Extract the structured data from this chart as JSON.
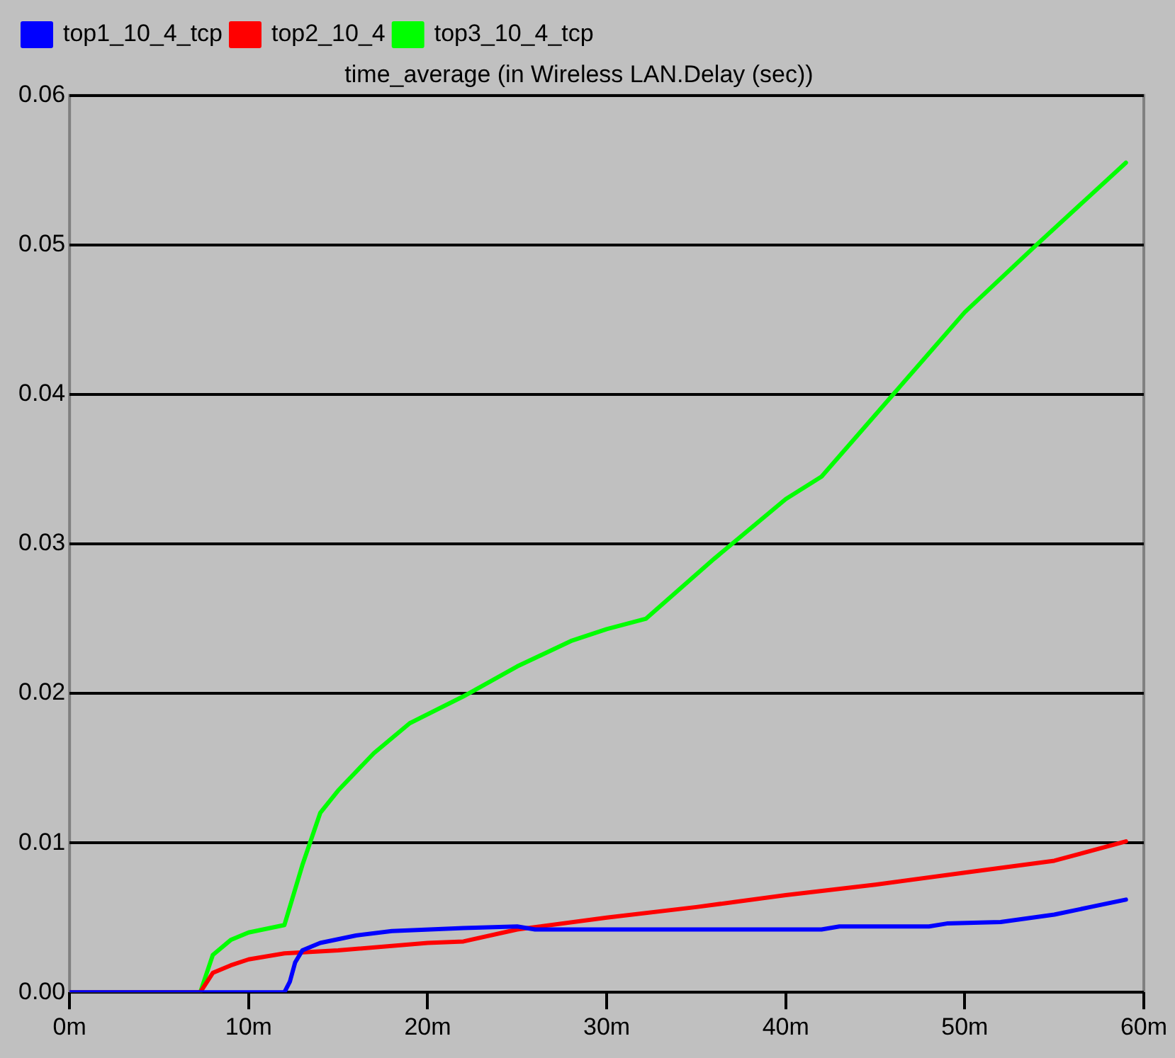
{
  "chart_data": {
    "type": "line",
    "title": "time_average (in Wireless LAN.Delay (sec))",
    "xlim": [
      0,
      60
    ],
    "xticks": [
      {
        "value": 0,
        "label": "0m"
      },
      {
        "value": 10,
        "label": "10m"
      },
      {
        "value": 20,
        "label": "20m"
      },
      {
        "value": 30,
        "label": "30m"
      },
      {
        "value": 40,
        "label": "40m"
      },
      {
        "value": 50,
        "label": "50m"
      },
      {
        "value": 60,
        "label": "60m"
      }
    ],
    "ylim": [
      0,
      0.06
    ],
    "yticks": [
      {
        "value": 0,
        "label": "0.00"
      },
      0.01,
      0.02,
      0.03,
      0.04,
      0.05,
      0.06
    ],
    "grid": "y",
    "legend": "top left",
    "marker": "none",
    "line_style": "solid",
    "series": [
      {
        "name": "top1_10_4_tcp",
        "color": "#0000ff",
        "x": [
          0,
          12,
          12.3,
          12.6,
          13,
          14,
          16,
          18,
          22,
          25,
          26,
          42,
          43,
          48,
          49,
          52,
          55,
          57,
          59
        ],
        "values": [
          0,
          0,
          0.0007,
          0.002,
          0.0028,
          0.0033,
          0.0038,
          0.0041,
          0.0043,
          0.0044,
          0.0042,
          0.0042,
          0.0044,
          0.0044,
          0.0046,
          0.0047,
          0.0052,
          0.0057,
          0.0062
        ]
      },
      {
        "name": "top2_10_4",
        "color": "#ff0000",
        "x": [
          0,
          7.3,
          8,
          9,
          10,
          12,
          15,
          20,
          22,
          25,
          30,
          35,
          40,
          45,
          50,
          55,
          59
        ],
        "values": [
          0,
          0,
          0.0013,
          0.0018,
          0.0022,
          0.0026,
          0.0028,
          0.0033,
          0.0034,
          0.0042,
          0.005,
          0.0057,
          0.0065,
          0.0072,
          0.008,
          0.0088,
          0.0101
        ]
      },
      {
        "name": "top3_10_4_tcp",
        "color": "#00ff00",
        "x": [
          0,
          7.3,
          8,
          9,
          10,
          12,
          13,
          14,
          15,
          17,
          19,
          22,
          25,
          28,
          30,
          32.2,
          36,
          40,
          42,
          46,
          50,
          54,
          59
        ],
        "values": [
          0,
          0,
          0.0025,
          0.0035,
          0.004,
          0.0045,
          0.0085,
          0.012,
          0.0135,
          0.016,
          0.018,
          0.0198,
          0.0218,
          0.0235,
          0.0243,
          0.025,
          0.029,
          0.033,
          0.0345,
          0.04,
          0.0455,
          0.05,
          0.0555
        ]
      }
    ]
  }
}
